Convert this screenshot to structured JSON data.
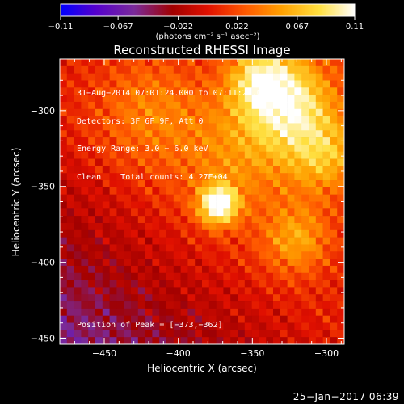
{
  "chart_data": {
    "type": "heatmap",
    "title": "Reconstructed RHESSI Image",
    "xlabel": "Heliocentric X (arcsec)",
    "ylabel": "Heliocentric Y (arcsec)",
    "xlim": [
      -480,
      -288
    ],
    "ylim": [
      -454,
      -266
    ],
    "x_ticks": [
      -450,
      -400,
      -350,
      -300
    ],
    "y_ticks": [
      -450,
      -400,
      -350,
      -300
    ],
    "x_tick_labels": [
      "−450",
      "−400",
      "−350",
      "−300"
    ],
    "y_tick_labels": [
      "−450",
      "−400",
      "−350",
      "−300"
    ],
    "colorbar": {
      "min": -0.11,
      "max": 0.11,
      "ticks": [
        -0.11,
        -0.067,
        -0.022,
        0.022,
        0.067,
        0.11
      ],
      "tick_labels": [
        "−0.11",
        "−0.067",
        "−0.022",
        "0.022",
        "0.067",
        "0.11"
      ],
      "unit_label": "(photons cm⁻² s⁻¹ asec⁻²)"
    },
    "annotations": [
      "31−Aug−2014 07:01:24.000 to 07:11:24.000",
      "Detectors: 3F 6F 9F, Att 0",
      "Energy Range: 3.0 − 6.0 keV",
      "Clean    Total counts: 4.27E+04"
    ],
    "peak_label": "Position of Peak = [−373,−362]",
    "peak": {
      "x": -373,
      "y": -362
    },
    "sources": [
      {
        "x": -373,
        "y": -362,
        "sigma": 9,
        "amp": 0.11
      },
      {
        "x": -325,
        "y": -295,
        "sigma": 22,
        "amp": 0.085
      },
      {
        "x": -345,
        "y": -278,
        "sigma": 15,
        "amp": 0.06
      },
      {
        "x": -300,
        "y": -330,
        "sigma": 18,
        "amp": 0.055
      },
      {
        "x": -320,
        "y": -385,
        "sigma": 16,
        "amp": 0.05
      },
      {
        "x": -420,
        "y": -300,
        "sigma": 25,
        "amp": 0.035
      },
      {
        "x": -360,
        "y": -330,
        "sigma": 30,
        "amp": 0.04
      }
    ],
    "colormap": [
      "#0000ff",
      "#5500cc",
      "#7a2a9a",
      "#a00000",
      "#e01000",
      "#ff5a00",
      "#ffa000",
      "#ffe040",
      "#ffffff"
    ]
  },
  "footer": {
    "date": "25−Jan−2017 06:39"
  }
}
